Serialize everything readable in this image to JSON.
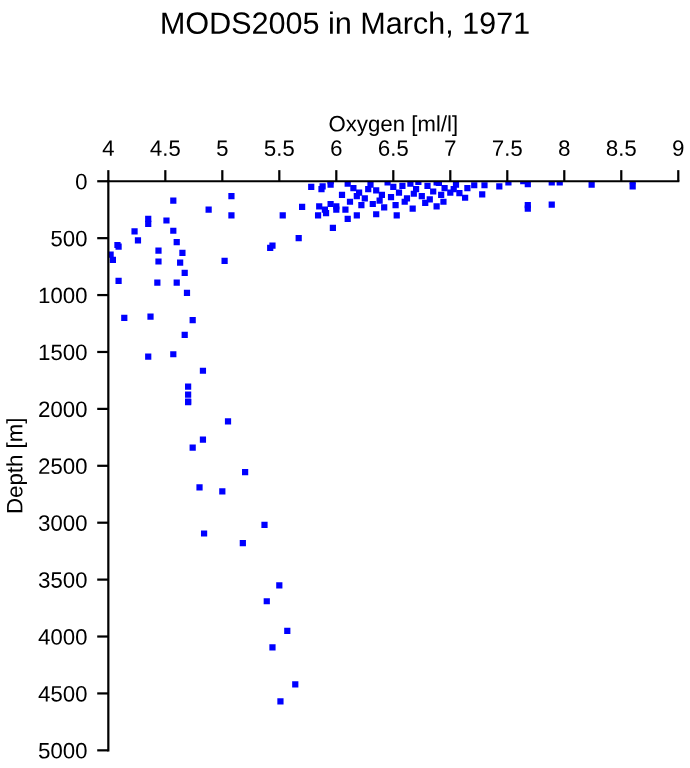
{
  "chart_data": {
    "type": "scatter",
    "title": "MODS2005 in March, 1971",
    "xlabel": "Oxygen [ml/l]",
    "ylabel": "Depth [m]",
    "xlim": [
      4,
      9
    ],
    "xticks": [
      4,
      4.5,
      5,
      5.5,
      6,
      6.5,
      7,
      7.5,
      8,
      8.5,
      9
    ],
    "ylim": [
      5000,
      0
    ],
    "yticks": [
      0,
      500,
      1000,
      1500,
      2000,
      2500,
      3000,
      3500,
      4000,
      4500,
      5000
    ],
    "marker": "square",
    "grid": false,
    "legend": false,
    "series": [
      {
        "color": "#0000ff",
        "x": [
          4.7,
          5.05,
          4.83,
          4.74,
          5.2,
          4.8,
          5.0,
          5.37,
          4.84,
          5.18,
          5.5,
          5.39,
          5.57,
          5.44,
          5.64,
          5.51,
          4.02,
          4.04,
          4.08,
          4.09,
          4.09,
          4.14,
          4.23,
          4.26,
          4.35,
          4.35,
          4.35,
          4.37,
          4.43,
          4.44,
          4.44,
          4.51,
          4.57,
          4.57,
          4.57,
          4.6,
          4.6,
          4.63,
          4.65,
          4.67,
          4.69,
          4.67,
          4.74,
          4.7,
          4.7,
          4.7,
          4.83,
          4.88,
          5.02,
          5.08,
          5.08,
          5.42,
          5.44,
          5.53,
          5.67,
          5.7,
          5.78,
          5.84,
          5.87,
          5.95,
          5.97,
          5.95,
          5.85,
          5.9,
          5.95,
          6.0,
          6.0,
          7.64,
          7.68,
          7.68,
          7.68,
          7.89,
          7.89,
          7.96,
          8.24,
          8.6,
          8.6,
          7.51,
          7.43,
          7.28,
          7.3,
          7.21,
          7.13,
          7.08,
          7.03,
          6.94,
          6.88,
          6.67,
          6.53,
          6.35,
          6.18,
          6.1,
          5.91,
          5.88,
          6.1,
          6.15,
          6.2,
          6.25,
          6.3,
          6.35,
          6.4,
          6.45,
          6.5,
          6.55,
          6.6,
          6.65,
          6.7,
          6.75,
          6.8,
          6.85,
          6.9,
          6.95,
          7.0,
          6.12,
          6.22,
          6.32,
          6.42,
          6.52,
          6.62,
          6.72,
          6.82,
          6.92,
          7.05,
          7.15,
          6.05,
          6.08,
          6.18,
          6.28,
          6.38,
          6.48,
          6.58,
          6.68,
          6.78,
          6.88
        ],
        "values": [
          1940,
          2110,
          2270,
          2340,
          2555,
          2690,
          2725,
          3020,
          3095,
          3180,
          3550,
          3690,
          3950,
          4095,
          4420,
          4570,
          645,
          690,
          560,
          575,
          875,
          1200,
          440,
          520,
          330,
          375,
          1540,
          1190,
          890,
          610,
          705,
          345,
          170,
          435,
          1520,
          535,
          890,
          715,
          630,
          805,
          980,
          1350,
          1220,
          1805,
          1875,
          1935,
          1665,
          250,
          700,
          130,
          300,
          585,
          565,
          300,
          500,
          225,
          50,
          300,
          70,
          0,
          410,
          30,
          220,
          250,
          200,
          250,
          220,
          0,
          25,
          210,
          240,
          205,
          10,
          10,
          30,
          0,
          45,
          10,
          45,
          115,
          35,
          35,
          145,
          105,
          70,
          180,
          220,
          240,
          300,
          290,
          300,
          330,
          280,
          45,
          20,
          60,
          100,
          150,
          30,
          80,
          120,
          10,
          50,
          100,
          180,
          20,
          70,
          130,
          40,
          90,
          15,
          60,
          100,
          180,
          210,
          200,
          230,
          210,
          150,
          5,
          160,
          120,
          30,
          60,
          120,
          250,
          130,
          70,
          170,
          140,
          40,
          110,
          190,
          10
        ]
      }
    ]
  }
}
